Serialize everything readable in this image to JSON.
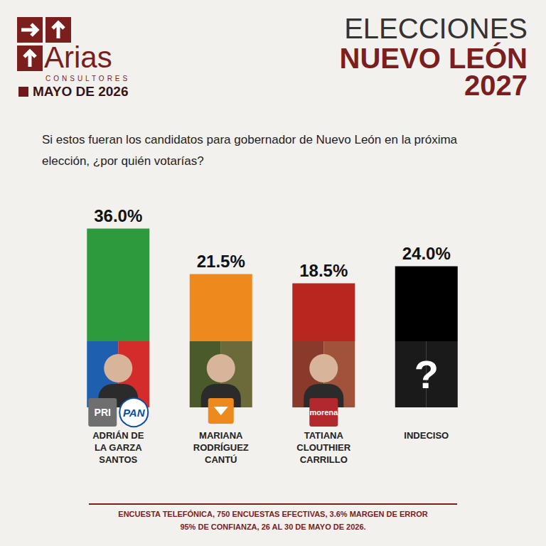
{
  "header": {
    "brand": "Arias",
    "brand_sub": "CONSULTORES",
    "date": "MAYO DE 2026",
    "title_lines": [
      "ELECCIONES",
      "NUEVO LEÓN",
      "2027"
    ]
  },
  "chart_data": {
    "type": "bar",
    "title": "Si estos fueran los candidatos para gobernador de Nuevo León en la próxima elección, ¿por quién votarías?",
    "categories": [
      "ADRIÁN DE LA GARZA SANTOS",
      "MARIANA RODRÍGUEZ CANTÚ",
      "TATIANA CLOUTHIER CARRILLO",
      "INDECISO"
    ],
    "values": [
      36.0,
      21.5,
      18.5,
      24.0
    ],
    "value_labels": [
      "36.0%",
      "21.5%",
      "18.5%",
      "24.0%"
    ],
    "colors": [
      "#2e9a3e",
      "#ee8a1d",
      "#b8261f",
      "#000000"
    ],
    "ylim": [
      0,
      40
    ],
    "data_labels": true,
    "tick_labels": "x",
    "grid": false
  },
  "party_logos": [
    [
      "PRI",
      "PAN"
    ],
    [],
    [
      "morena"
    ],
    []
  ],
  "undecided_mark": "?",
  "footer": [
    "ENCUESTA TELEFÓNICA, 750 ENCUESTAS EFECTIVAS, 3.6% MARGEN DE ERROR",
    "95% DE CONFIANZA, 26 AL 30 DE MAYO DE 2026."
  ]
}
